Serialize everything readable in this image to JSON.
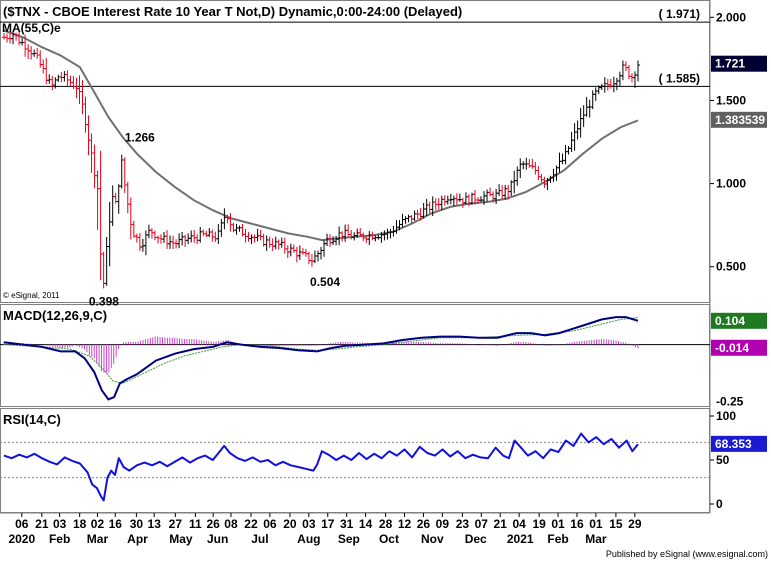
{
  "chart_data": {
    "type": "candlestick",
    "title": "($TNX - CBOE Interest Rate 10 Year T Not,D) Dynamic,0:00-24:00 (Delayed)",
    "copyright": "© eSignal, 2011",
    "footer": "Published by eSignal (www.esignal.com)",
    "colors": {
      "up": "#000000",
      "down": "#e8001c",
      "ma": "#707070",
      "macd": "#000080",
      "signal": "#3a9a3a",
      "hist": "#cc44cc",
      "rsi": "#1010e0",
      "badge_bg": "#000033"
    },
    "price_panel": {
      "ylim": [
        0.3,
        2.08
      ],
      "yticks": [
        "2.000",
        "1.500",
        "1.000",
        "0.500"
      ],
      "ma_label": "MA(55,C)e",
      "hlines": [
        {
          "value": 1.971,
          "label": "( 1.971)"
        },
        {
          "value": 1.585,
          "label": "( 1.585)"
        }
      ],
      "badges": [
        {
          "value": 1.721,
          "label": "1.721",
          "style": "dark"
        },
        {
          "value": 1.383539,
          "label": "1.383539",
          "style": "gray"
        }
      ],
      "annotations": [
        {
          "label": "1.266",
          "x": 12.1,
          "y": 1.266
        },
        {
          "label": "0.398",
          "x": 10.0,
          "y": 0.398
        },
        {
          "label": "0.504",
          "x": 33.3,
          "y": 0.504
        }
      ],
      "close_series": [
        [
          0,
          1.88
        ],
        [
          1,
          1.9
        ],
        [
          1.6,
          1.86
        ],
        [
          2.5,
          1.82
        ],
        [
          3.4,
          1.76
        ],
        [
          4.3,
          1.66
        ],
        [
          5,
          1.58
        ],
        [
          5.8,
          1.65
        ],
        [
          6.8,
          1.62
        ],
        [
          7.7,
          1.58
        ],
        [
          8.4,
          1.44
        ],
        [
          9.2,
          1.18
        ],
        [
          9.9,
          0.96
        ],
        [
          10.2,
          0.55
        ],
        [
          10.5,
          0.4
        ],
        [
          11.0,
          0.72
        ],
        [
          11.4,
          0.92
        ],
        [
          11.9,
          0.86
        ],
        [
          12.3,
          1.17
        ],
        [
          12.8,
          0.96
        ],
        [
          13.5,
          0.72
        ],
        [
          14.4,
          0.63
        ],
        [
          15.4,
          0.72
        ],
        [
          16.5,
          0.67
        ],
        [
          18,
          0.64
        ],
        [
          19.5,
          0.67
        ],
        [
          21,
          0.69
        ],
        [
          22.5,
          0.68
        ],
        [
          23.4,
          0.83
        ],
        [
          24.1,
          0.73
        ],
        [
          25.5,
          0.7
        ],
        [
          27,
          0.66
        ],
        [
          29,
          0.63
        ],
        [
          31,
          0.58
        ],
        [
          32.5,
          0.54
        ],
        [
          33.2,
          0.59
        ],
        [
          34,
          0.66
        ],
        [
          35.5,
          0.7
        ],
        [
          37,
          0.68
        ],
        [
          38.5,
          0.69
        ],
        [
          40.5,
          0.7
        ],
        [
          42,
          0.77
        ],
        [
          43.7,
          0.82
        ],
        [
          45.5,
          0.88
        ],
        [
          47,
          0.93
        ],
        [
          48.5,
          0.9
        ],
        [
          50,
          0.92
        ],
        [
          52,
          0.93
        ],
        [
          53.3,
          0.97
        ],
        [
          54.5,
          1.12
        ],
        [
          56,
          1.08
        ],
        [
          57,
          1.01
        ],
        [
          58,
          1.08
        ],
        [
          59,
          1.15
        ],
        [
          60,
          1.28
        ],
        [
          61,
          1.41
        ],
        [
          62.3,
          1.54
        ],
        [
          63.2,
          1.58
        ],
        [
          64.3,
          1.62
        ],
        [
          65.3,
          1.7
        ],
        [
          66.2,
          1.64
        ],
        [
          66.8,
          1.72
        ]
      ],
      "ma_series": [
        [
          0,
          1.92
        ],
        [
          2,
          1.88
        ],
        [
          4,
          1.82
        ],
        [
          6,
          1.77
        ],
        [
          8,
          1.7
        ],
        [
          9.5,
          1.55
        ],
        [
          11,
          1.4
        ],
        [
          12.5,
          1.28
        ],
        [
          14,
          1.18
        ],
        [
          16,
          1.07
        ],
        [
          18,
          0.98
        ],
        [
          20,
          0.9
        ],
        [
          22,
          0.84
        ],
        [
          24,
          0.79
        ],
        [
          26,
          0.76
        ],
        [
          28,
          0.73
        ],
        [
          30,
          0.7
        ],
        [
          32,
          0.68
        ],
        [
          33.5,
          0.66
        ],
        [
          35,
          0.67
        ],
        [
          37,
          0.68
        ],
        [
          39,
          0.69
        ],
        [
          41,
          0.71
        ],
        [
          43,
          0.76
        ],
        [
          45,
          0.82
        ],
        [
          47,
          0.86
        ],
        [
          49,
          0.88
        ],
        [
          51,
          0.89
        ],
        [
          53,
          0.91
        ],
        [
          55,
          0.95
        ],
        [
          57,
          1.01
        ],
        [
          59,
          1.08
        ],
        [
          61,
          1.18
        ],
        [
          63,
          1.27
        ],
        [
          65,
          1.34
        ],
        [
          66.8,
          1.38
        ]
      ]
    },
    "macd_panel": {
      "label": "MACD(12,26,9,C)",
      "ylim": [
        -0.26,
        0.16
      ],
      "yticks": [
        "-0.25"
      ],
      "zero_line": 0.0,
      "badges": [
        {
          "value": 0.104,
          "label": "0.104",
          "style": "green"
        },
        {
          "value": -0.014,
          "label": "-0.014",
          "style": "magenta"
        }
      ],
      "macd_series": [
        [
          0,
          0.01
        ],
        [
          2,
          0.0
        ],
        [
          4,
          -0.01
        ],
        [
          6,
          -0.03
        ],
        [
          7.5,
          -0.03
        ],
        [
          8.5,
          -0.06
        ],
        [
          9.5,
          -0.12
        ],
        [
          10.3,
          -0.2
        ],
        [
          11.0,
          -0.24
        ],
        [
          11.6,
          -0.23
        ],
        [
          12.2,
          -0.17
        ],
        [
          13.0,
          -0.15
        ],
        [
          14,
          -0.13
        ],
        [
          15,
          -0.1
        ],
        [
          16,
          -0.07
        ],
        [
          18,
          -0.04
        ],
        [
          20,
          -0.02
        ],
        [
          22,
          -0.01
        ],
        [
          23.5,
          0.01
        ],
        [
          25,
          0.0
        ],
        [
          27,
          -0.01
        ],
        [
          29,
          -0.015
        ],
        [
          31,
          -0.025
        ],
        [
          33,
          -0.03
        ],
        [
          34.5,
          -0.015
        ],
        [
          36,
          -0.005
        ],
        [
          38,
          0.0
        ],
        [
          40,
          0.005
        ],
        [
          42,
          0.02
        ],
        [
          44,
          0.03
        ],
        [
          46,
          0.035
        ],
        [
          48,
          0.035
        ],
        [
          50,
          0.03
        ],
        [
          52,
          0.03
        ],
        [
          54,
          0.05
        ],
        [
          55.5,
          0.05
        ],
        [
          57,
          0.04
        ],
        [
          58.5,
          0.05
        ],
        [
          60,
          0.07
        ],
        [
          61.5,
          0.09
        ],
        [
          63,
          0.11
        ],
        [
          64.5,
          0.12
        ],
        [
          65.5,
          0.12
        ],
        [
          66.8,
          0.104
        ]
      ],
      "signal_series": [
        [
          0,
          0.0
        ],
        [
          4,
          -0.01
        ],
        [
          7,
          -0.02
        ],
        [
          9,
          -0.05
        ],
        [
          10.5,
          -0.11
        ],
        [
          11.5,
          -0.16
        ],
        [
          12.5,
          -0.17
        ],
        [
          13.5,
          -0.15
        ],
        [
          15,
          -0.12
        ],
        [
          17,
          -0.08
        ],
        [
          19,
          -0.05
        ],
        [
          21,
          -0.03
        ],
        [
          23,
          -0.01
        ],
        [
          25,
          0.0
        ],
        [
          28,
          -0.005
        ],
        [
          31,
          -0.02
        ],
        [
          33,
          -0.025
        ],
        [
          35,
          -0.02
        ],
        [
          37,
          -0.01
        ],
        [
          40,
          0.0
        ],
        [
          43,
          0.015
        ],
        [
          46,
          0.03
        ],
        [
          50,
          0.03
        ],
        [
          54,
          0.04
        ],
        [
          57,
          0.045
        ],
        [
          60,
          0.06
        ],
        [
          63,
          0.09
        ],
        [
          65,
          0.11
        ],
        [
          66.8,
          0.118
        ]
      ]
    },
    "rsi_panel": {
      "label": "RSI(14,C)",
      "ylim": [
        0,
        100
      ],
      "yticks": [
        "100",
        "50",
        "0"
      ],
      "levels": [
        70,
        30
      ],
      "badge": {
        "value": 68.353,
        "label": "68.353"
      },
      "rsi_series": [
        [
          0,
          55
        ],
        [
          0.8,
          52
        ],
        [
          1.6,
          56
        ],
        [
          2.4,
          53
        ],
        [
          3.2,
          57
        ],
        [
          4.0,
          52
        ],
        [
          4.8,
          48
        ],
        [
          5.6,
          45
        ],
        [
          6.4,
          53
        ],
        [
          7.2,
          49
        ],
        [
          8.0,
          46
        ],
        [
          8.8,
          36
        ],
        [
          9.3,
          22
        ],
        [
          9.8,
          18
        ],
        [
          10.2,
          9
        ],
        [
          10.5,
          4
        ],
        [
          10.9,
          30
        ],
        [
          11.3,
          38
        ],
        [
          11.7,
          33
        ],
        [
          12.1,
          52
        ],
        [
          12.6,
          42
        ],
        [
          13.2,
          38
        ],
        [
          14.0,
          44
        ],
        [
          14.8,
          47
        ],
        [
          15.6,
          44
        ],
        [
          16.4,
          48
        ],
        [
          17.2,
          43
        ],
        [
          18.0,
          48
        ],
        [
          18.8,
          53
        ],
        [
          19.6,
          47
        ],
        [
          20.4,
          52
        ],
        [
          21.2,
          55
        ],
        [
          22.0,
          50
        ],
        [
          22.6,
          58
        ],
        [
          23.2,
          66
        ],
        [
          23.8,
          58
        ],
        [
          24.6,
          52
        ],
        [
          25.4,
          49
        ],
        [
          26.2,
          53
        ],
        [
          27.0,
          48
        ],
        [
          27.8,
          50
        ],
        [
          28.6,
          44
        ],
        [
          29.4,
          48
        ],
        [
          30.2,
          44
        ],
        [
          31.0,
          42
        ],
        [
          31.8,
          40
        ],
        [
          32.6,
          38
        ],
        [
          33.0,
          45
        ],
        [
          33.5,
          60
        ],
        [
          34.2,
          56
        ],
        [
          35.0,
          50
        ],
        [
          35.8,
          55
        ],
        [
          36.6,
          50
        ],
        [
          37.4,
          58
        ],
        [
          38.2,
          51
        ],
        [
          39.0,
          57
        ],
        [
          39.8,
          52
        ],
        [
          40.6,
          60
        ],
        [
          41.4,
          55
        ],
        [
          42.2,
          62
        ],
        [
          43.0,
          53
        ],
        [
          43.8,
          65
        ],
        [
          44.6,
          58
        ],
        [
          45.4,
          55
        ],
        [
          46.2,
          62
        ],
        [
          47.0,
          54
        ],
        [
          47.8,
          60
        ],
        [
          48.6,
          52
        ],
        [
          49.4,
          56
        ],
        [
          50.2,
          53
        ],
        [
          51.0,
          52
        ],
        [
          51.8,
          64
        ],
        [
          52.6,
          55
        ],
        [
          53.2,
          52
        ],
        [
          53.8,
          72
        ],
        [
          54.4,
          65
        ],
        [
          55.2,
          55
        ],
        [
          56.0,
          60
        ],
        [
          56.8,
          52
        ],
        [
          57.6,
          62
        ],
        [
          58.4,
          59
        ],
        [
          59.2,
          72
        ],
        [
          60.0,
          66
        ],
        [
          60.8,
          80
        ],
        [
          61.6,
          70
        ],
        [
          62.4,
          76
        ],
        [
          63.2,
          68
        ],
        [
          64.0,
          74
        ],
        [
          64.8,
          64
        ],
        [
          65.6,
          72
        ],
        [
          66.2,
          60
        ],
        [
          66.8,
          68
        ]
      ]
    },
    "x_axis": {
      "day_labels": [
        {
          "x": 1.6,
          "label": "06"
        },
        {
          "x": 3.4,
          "label": "21"
        },
        {
          "x": 5.0,
          "label": "03"
        },
        {
          "x": 6.8,
          "label": "18"
        },
        {
          "x": 8.4,
          "label": "02"
        },
        {
          "x": 10.0,
          "label": "16"
        },
        {
          "x": 11.9,
          "label": "30"
        },
        {
          "x": 13.5,
          "label": "13"
        },
        {
          "x": 15.4,
          "label": "27"
        },
        {
          "x": 17.2,
          "label": "11"
        },
        {
          "x": 18.8,
          "label": "26"
        },
        {
          "x": 20.4,
          "label": "08"
        },
        {
          "x": 22.2,
          "label": "22"
        },
        {
          "x": 23.9,
          "label": "06"
        },
        {
          "x": 25.7,
          "label": "20"
        },
        {
          "x": 27.4,
          "label": "03"
        },
        {
          "x": 29.1,
          "label": "17"
        },
        {
          "x": 30.8,
          "label": "31"
        },
        {
          "x": 32.5,
          "label": "14"
        },
        {
          "x": 34.3,
          "label": "28"
        },
        {
          "x": 36.0,
          "label": "12"
        },
        {
          "x": 37.7,
          "label": "26"
        },
        {
          "x": 39.4,
          "label": "09"
        },
        {
          "x": 41.2,
          "label": "23"
        },
        {
          "x": 42.9,
          "label": "07"
        },
        {
          "x": 44.6,
          "label": "21"
        },
        {
          "x": 46.3,
          "label": "04"
        },
        {
          "x": 48.1,
          "label": "19"
        },
        {
          "x": 49.8,
          "label": "01"
        },
        {
          "x": 51.5,
          "label": "16"
        },
        {
          "x": 53.2,
          "label": "01"
        },
        {
          "x": 55.0,
          "label": "15"
        },
        {
          "x": 56.7,
          "label": "29"
        }
      ],
      "period_labels": [
        {
          "x": 1.6,
          "label": "2020"
        },
        {
          "x": 5.0,
          "label": "Feb"
        },
        {
          "x": 8.4,
          "label": "Mar"
        },
        {
          "x": 12.0,
          "label": "Apr"
        },
        {
          "x": 15.9,
          "label": "May"
        },
        {
          "x": 19.2,
          "label": "Jun"
        },
        {
          "x": 23.0,
          "label": "Jul"
        },
        {
          "x": 27.4,
          "label": "Aug"
        },
        {
          "x": 31.0,
          "label": "Sep"
        },
        {
          "x": 34.6,
          "label": "Oct"
        },
        {
          "x": 38.5,
          "label": "Nov"
        },
        {
          "x": 42.4,
          "label": "Dec"
        },
        {
          "x": 46.4,
          "label": "2021"
        },
        {
          "x": 49.8,
          "label": "Feb"
        },
        {
          "x": 53.2,
          "label": "Mar"
        }
      ]
    }
  }
}
